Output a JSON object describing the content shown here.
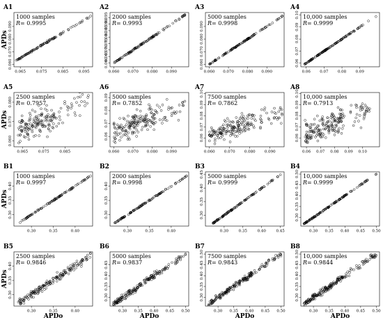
{
  "figure": {
    "x_axis_label": "APDo",
    "y_axis_label": "APDs"
  },
  "chart_data": [
    {
      "id": "A1",
      "type": "scatter",
      "annotation": "1000 samples",
      "r_label": "R",
      "r_value": "= 0.9995",
      "xlim": [
        0.062,
        0.099
      ],
      "ylim": [
        0.058,
        0.101
      ],
      "xticks": [
        "0.065",
        "0.075",
        "0.085",
        "0.095"
      ],
      "yticks": [
        "0.060",
        "0.070",
        "0.080",
        "0.090"
      ],
      "points": {
        "kind": "line",
        "x_start": 0.0625,
        "x_end": 0.098,
        "slope": 1.0,
        "intercept": 0.0,
        "spread": 0.0003,
        "n": 95,
        "bulk": [
          0.063,
          0.082
        ]
      }
    },
    {
      "id": "A2",
      "type": "scatter",
      "annotation": "2000 samples",
      "r_label": "R",
      "r_value": "= 0.9993",
      "xlim": [
        0.058,
        0.099
      ],
      "ylim": [
        0.057,
        0.099
      ],
      "xticks": [
        "0.060",
        "0.070",
        "0.080",
        "0.090"
      ],
      "yticks": [
        "0.060",
        "0.065",
        "0.070",
        "0.075",
        "0.080",
        "0.085",
        "0.090",
        "0.095"
      ],
      "points": {
        "kind": "line",
        "x_start": 0.059,
        "x_end": 0.097,
        "slope": 1.0,
        "intercept": 0.0,
        "spread": 0.0003,
        "n": 105,
        "bulk": [
          0.06,
          0.084
        ]
      }
    },
    {
      "id": "A3",
      "type": "scatter",
      "annotation": "5000 samples",
      "r_label": "R",
      "r_value": "= 0.9998",
      "xlim": [
        0.058,
        0.099
      ],
      "ylim": [
        0.058,
        0.101
      ],
      "xticks": [
        "0.060",
        "0.070",
        "0.080",
        "0.090"
      ],
      "yticks": [
        "0.060",
        "0.070",
        "0.080",
        "0.090"
      ],
      "points": {
        "kind": "line",
        "x_start": 0.059,
        "x_end": 0.098,
        "slope": 1.0,
        "intercept": 0.0,
        "spread": 0.0002,
        "n": 115,
        "bulk": [
          0.06,
          0.084
        ]
      }
    },
    {
      "id": "A4",
      "type": "scatter",
      "annotation": "10,000 samples",
      "r_label": "R",
      "r_value": "= 0.9999",
      "xlim": [
        0.057,
        0.101
      ],
      "ylim": [
        0.057,
        0.102
      ],
      "xticks": [
        "0.06",
        "0.07",
        "0.08",
        "0.09"
      ],
      "yticks": [
        "0.06",
        "0.07",
        "0.08",
        "0.09",
        "0.10"
      ],
      "points": {
        "kind": "line",
        "x_start": 0.058,
        "x_end": 0.099,
        "slope": 1.0,
        "intercept": 0.0,
        "spread": 0.0002,
        "n": 120,
        "bulk": [
          0.059,
          0.085
        ]
      }
    },
    {
      "id": "A5",
      "type": "scatter",
      "annotation": "2500 samples",
      "r_label": "R",
      "r_value": "= 0.7957",
      "xlim": [
        0.061,
        0.098
      ],
      "ylim": [
        0.057,
        0.085
      ],
      "xticks": [
        "0.065",
        "0.075",
        "0.085"
      ],
      "yticks": [
        "0.060",
        "0.070",
        "0.080"
      ],
      "points": {
        "kind": "cloud",
        "x_start": 0.062,
        "x_end": 0.096,
        "slope": 0.45,
        "intercept": 0.037,
        "spread": 0.0035,
        "n": 170,
        "bulk": [
          0.063,
          0.08
        ]
      }
    },
    {
      "id": "A6",
      "type": "scatter",
      "annotation": "5000 samples",
      "r_label": "R",
      "r_value": "= 0.7852",
      "xlim": [
        0.058,
        0.099
      ],
      "ylim": [
        0.052,
        0.094
      ],
      "xticks": [
        "0.060",
        "0.070",
        "0.080",
        "0.090"
      ],
      "yticks": [
        "0.06",
        "0.07",
        "0.08",
        "0.09"
      ],
      "points": {
        "kind": "cloud",
        "x_start": 0.059,
        "x_end": 0.097,
        "slope": 0.5,
        "intercept": 0.034,
        "spread": 0.004,
        "n": 185,
        "bulk": [
          0.06,
          0.082
        ]
      }
    },
    {
      "id": "A7",
      "type": "scatter",
      "annotation": "7500 samples",
      "r_label": "R",
      "r_value": "= 0.7862",
      "xlim": [
        0.058,
        0.097
      ],
      "ylim": [
        0.052,
        0.101
      ],
      "xticks": [
        "0.060",
        "0.070",
        "0.080",
        "0.090"
      ],
      "yticks": [
        "0.05",
        "0.06",
        "0.07",
        "0.08",
        "0.09",
        "0.10"
      ],
      "points": {
        "kind": "cloud",
        "x_start": 0.059,
        "x_end": 0.096,
        "slope": 0.5,
        "intercept": 0.034,
        "spread": 0.004,
        "n": 185,
        "bulk": [
          0.06,
          0.082
        ]
      }
    },
    {
      "id": "A8",
      "type": "scatter",
      "annotation": "10,000 samples",
      "r_label": "R",
      "r_value": "= 0.7913",
      "xlim": [
        0.056,
        0.112
      ],
      "ylim": [
        0.052,
        0.101
      ],
      "xticks": [
        "0.06",
        "0.07",
        "0.08",
        "0.09",
        "0.10"
      ],
      "yticks": [
        "0.05",
        "0.06",
        "0.07",
        "0.08",
        "0.09",
        "0.10"
      ],
      "points": {
        "kind": "cloud",
        "x_start": 0.057,
        "x_end": 0.105,
        "slope": 0.5,
        "intercept": 0.034,
        "spread": 0.0045,
        "n": 195,
        "bulk": [
          0.059,
          0.085
        ]
      }
    },
    {
      "id": "B1",
      "type": "scatter",
      "annotation": "1000 samples",
      "r_label": "R",
      "r_value": "= 0.9997",
      "xlim": [
        0.26,
        0.44
      ],
      "ylim": [
        0.26,
        0.45
      ],
      "xticks": [
        "0.30",
        "0.35",
        "0.40"
      ],
      "yticks": [
        "0.30",
        "0.35",
        "0.40"
      ],
      "points": {
        "kind": "line",
        "x_start": 0.265,
        "x_end": 0.435,
        "slope": 1.0,
        "intercept": 0.0,
        "spread": 0.001,
        "n": 95,
        "bulk": [
          0.27,
          0.38
        ]
      }
    },
    {
      "id": "B2",
      "type": "scatter",
      "annotation": "2000 samples",
      "r_label": "R",
      "r_value": "= 0.9998",
      "xlim": [
        0.26,
        0.44
      ],
      "ylim": [
        0.26,
        0.45
      ],
      "xticks": [
        "0.30",
        "0.35",
        "0.40"
      ],
      "yticks": [
        "0.30",
        "0.35",
        "0.40"
      ],
      "points": {
        "kind": "line",
        "x_start": 0.265,
        "x_end": 0.435,
        "slope": 1.0,
        "intercept": 0.0,
        "spread": 0.001,
        "n": 105,
        "bulk": [
          0.27,
          0.38
        ]
      }
    },
    {
      "id": "B3",
      "type": "scatter",
      "annotation": "5000 samples",
      "r_label": "R",
      "r_value": "= 0.9999",
      "xlim": [
        0.25,
        0.46
      ],
      "ylim": [
        0.26,
        0.46
      ],
      "xticks": [
        "0.30",
        "0.35",
        "0.40",
        "0.45"
      ],
      "yticks": [
        "0.30",
        "0.35",
        "0.40",
        "0.45"
      ],
      "points": {
        "kind": "line",
        "x_start": 0.262,
        "x_end": 0.45,
        "slope": 1.0,
        "intercept": 0.0,
        "spread": 0.001,
        "n": 115,
        "bulk": [
          0.27,
          0.39
        ]
      }
    },
    {
      "id": "B4",
      "type": "scatter",
      "annotation": "10,000 samples",
      "r_label": "R",
      "r_value": "= 0.9999",
      "xlim": [
        0.26,
        0.51
      ],
      "ylim": [
        0.26,
        0.51
      ],
      "xticks": [
        "0.30",
        "0.35",
        "0.40",
        "0.45",
        "0.50"
      ],
      "yticks": [
        "0.30",
        "0.35",
        "0.40",
        "0.45",
        "0.50"
      ],
      "points": {
        "kind": "line",
        "x_start": 0.265,
        "x_end": 0.5,
        "slope": 1.0,
        "intercept": 0.0,
        "spread": 0.001,
        "n": 125,
        "bulk": [
          0.27,
          0.41
        ]
      }
    },
    {
      "id": "B5",
      "type": "scatter",
      "annotation": "2500 samples",
      "r_label": "R",
      "r_value": "= 0.9846",
      "xlim": [
        0.26,
        0.44
      ],
      "ylim": [
        0.26,
        0.45
      ],
      "xticks": [
        "0.30",
        "0.35",
        "0.40"
      ],
      "yticks": [
        "0.30",
        "0.35",
        "0.40"
      ],
      "points": {
        "kind": "band",
        "x_start": 0.265,
        "x_end": 0.435,
        "slope": 1.0,
        "intercept": 0.0,
        "spread": 0.006,
        "n": 170,
        "bulk": [
          0.27,
          0.39
        ]
      }
    },
    {
      "id": "B6",
      "type": "scatter",
      "annotation": "5000 samples",
      "r_label": "R",
      "r_value": "= 0.9837",
      "xlim": [
        0.26,
        0.51
      ],
      "ylim": [
        0.26,
        0.51
      ],
      "xticks": [
        "0.30",
        "0.35",
        "0.40",
        "0.45",
        "0.50"
      ],
      "yticks": [
        "0.30",
        "0.35",
        "0.40",
        "0.45"
      ],
      "points": {
        "kind": "band",
        "x_start": 0.265,
        "x_end": 0.5,
        "slope": 1.0,
        "intercept": 0.0,
        "spread": 0.007,
        "n": 180,
        "bulk": [
          0.27,
          0.41
        ]
      }
    },
    {
      "id": "B7",
      "type": "scatter",
      "annotation": "7500 samples",
      "r_label": "R",
      "r_value": "= 0.9843",
      "xlim": [
        0.26,
        0.51
      ],
      "ylim": [
        0.26,
        0.51
      ],
      "xticks": [
        "0.30",
        "0.35",
        "0.40",
        "0.45",
        "0.50"
      ],
      "yticks": [
        "0.30",
        "0.35",
        "0.40",
        "0.45",
        "0.50"
      ],
      "points": {
        "kind": "band",
        "x_start": 0.265,
        "x_end": 0.5,
        "slope": 1.0,
        "intercept": 0.0,
        "spread": 0.007,
        "n": 180,
        "bulk": [
          0.27,
          0.41
        ]
      }
    },
    {
      "id": "B8",
      "type": "scatter",
      "annotation": "10,000 samples",
      "r_label": "R",
      "r_value": "= 0.9844",
      "xlim": [
        0.26,
        0.51
      ],
      "ylim": [
        0.26,
        0.51
      ],
      "xticks": [
        "0.30",
        "0.35",
        "0.40",
        "0.45",
        "0.50"
      ],
      "yticks": [
        "0.30",
        "0.35",
        "0.40",
        "0.45",
        "0.50"
      ],
      "points": {
        "kind": "band",
        "x_start": 0.265,
        "x_end": 0.5,
        "slope": 1.0,
        "intercept": 0.0,
        "spread": 0.007,
        "n": 190,
        "bulk": [
          0.27,
          0.41
        ]
      }
    }
  ]
}
